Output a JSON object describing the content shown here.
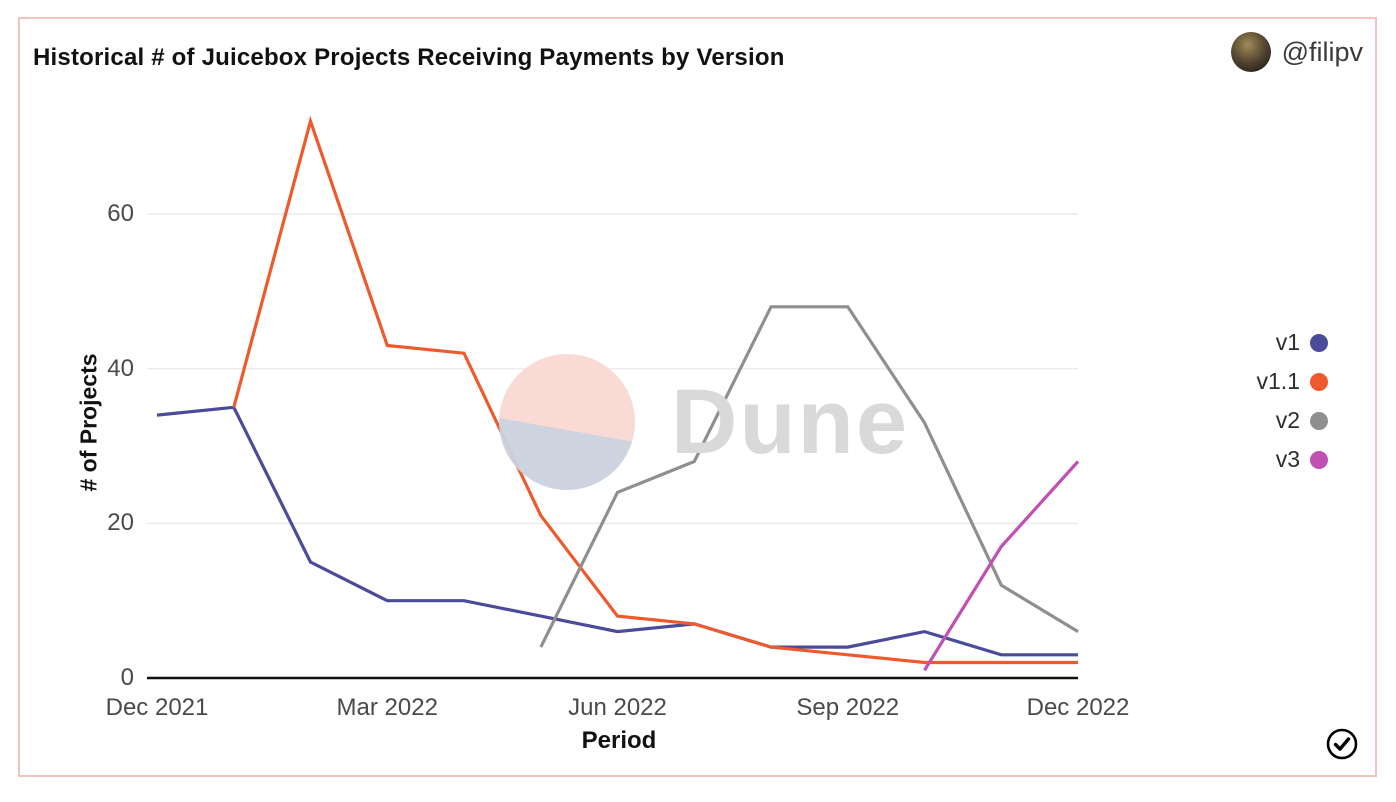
{
  "header": {
    "title": "Historical # of Juicebox Projects Receiving Payments by Version",
    "user_handle": "@filipv"
  },
  "watermark": {
    "text": "Dune"
  },
  "icons": {
    "author_avatar": "bust-statue-photo",
    "bottom_right": "check-circle"
  },
  "colors": {
    "card_border": "#f0c5be",
    "gridline": "#ebebeb",
    "axis": "#111111",
    "tick_text": "#4a4a4a"
  },
  "chart_data": {
    "type": "line",
    "title": "Historical # of Juicebox Projects Receiving Payments by Version",
    "xlabel": "Period",
    "ylabel": "# of Projects",
    "categories": [
      "Dec 2021",
      "Jan 2022",
      "Feb 2022",
      "Mar 2022",
      "Apr 2022",
      "May 2022",
      "Jun 2022",
      "Jul 2022",
      "Aug 2022",
      "Sep 2022",
      "Oct 2022",
      "Nov 2022",
      "Dec 2022"
    ],
    "x_tick_labels": [
      "Dec 2021",
      "Mar 2022",
      "Jun 2022",
      "Sep 2022",
      "Dec 2022"
    ],
    "x_tick_indices": [
      0,
      3,
      6,
      9,
      12
    ],
    "y_ticks": [
      0,
      20,
      40,
      60
    ],
    "ylim": [
      0,
      75
    ],
    "grid": "horizontal",
    "legend_position": "right",
    "series": [
      {
        "name": "v1",
        "color": "#4b4b9c",
        "start_index": 0,
        "values": [
          34,
          35,
          15,
          10,
          10,
          8,
          6,
          7,
          4,
          4,
          6,
          3,
          3
        ]
      },
      {
        "name": "v1.1",
        "color": "#ee5a2d",
        "start_index": 1,
        "values": [
          35,
          72,
          43,
          42,
          21,
          8,
          7,
          4,
          3,
          2,
          2,
          2
        ]
      },
      {
        "name": "v2",
        "color": "#8f8f8f",
        "start_index": 5,
        "values": [
          4,
          24,
          28,
          48,
          48,
          33,
          12,
          6
        ]
      },
      {
        "name": "v3",
        "color": "#c24fb2",
        "start_index": 10,
        "values": [
          1,
          17,
          28
        ]
      }
    ]
  }
}
